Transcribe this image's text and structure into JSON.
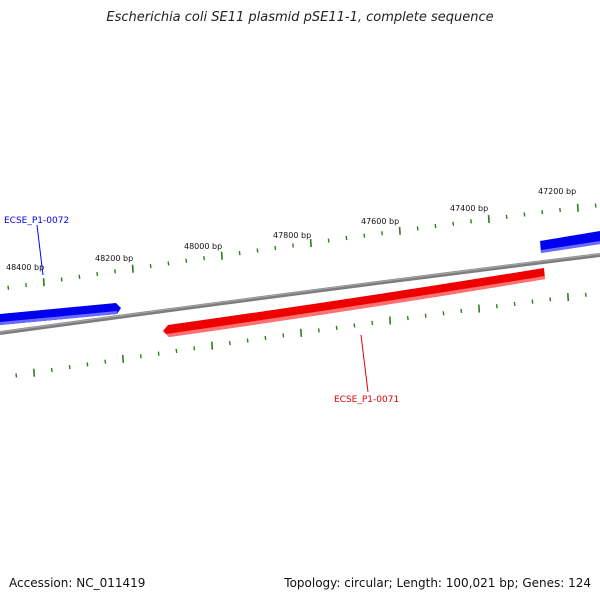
{
  "title": "Escherichia coli SE11 plasmid pSE11-1, complete sequence",
  "footer": {
    "accession": "Accession: NC_011419",
    "summary": "Topology: circular; Length: 100,021 bp; Genes: 124"
  },
  "scale_labels": [
    "48400 bp",
    "48200 bp",
    "48000 bp",
    "47800 bp",
    "47600 bp",
    "47400 bp",
    "47200 bp"
  ],
  "genes": [
    {
      "label": "ECSE_P1-0072",
      "color": "#0000ee"
    },
    {
      "label": "ECSE_P1-0071",
      "color": "#dd0000"
    }
  ],
  "colors": {
    "backbone": "#808080",
    "forward_gene": "#0000ee",
    "reverse_gene": "#ee0000",
    "ticks": "#2e7d1e"
  }
}
